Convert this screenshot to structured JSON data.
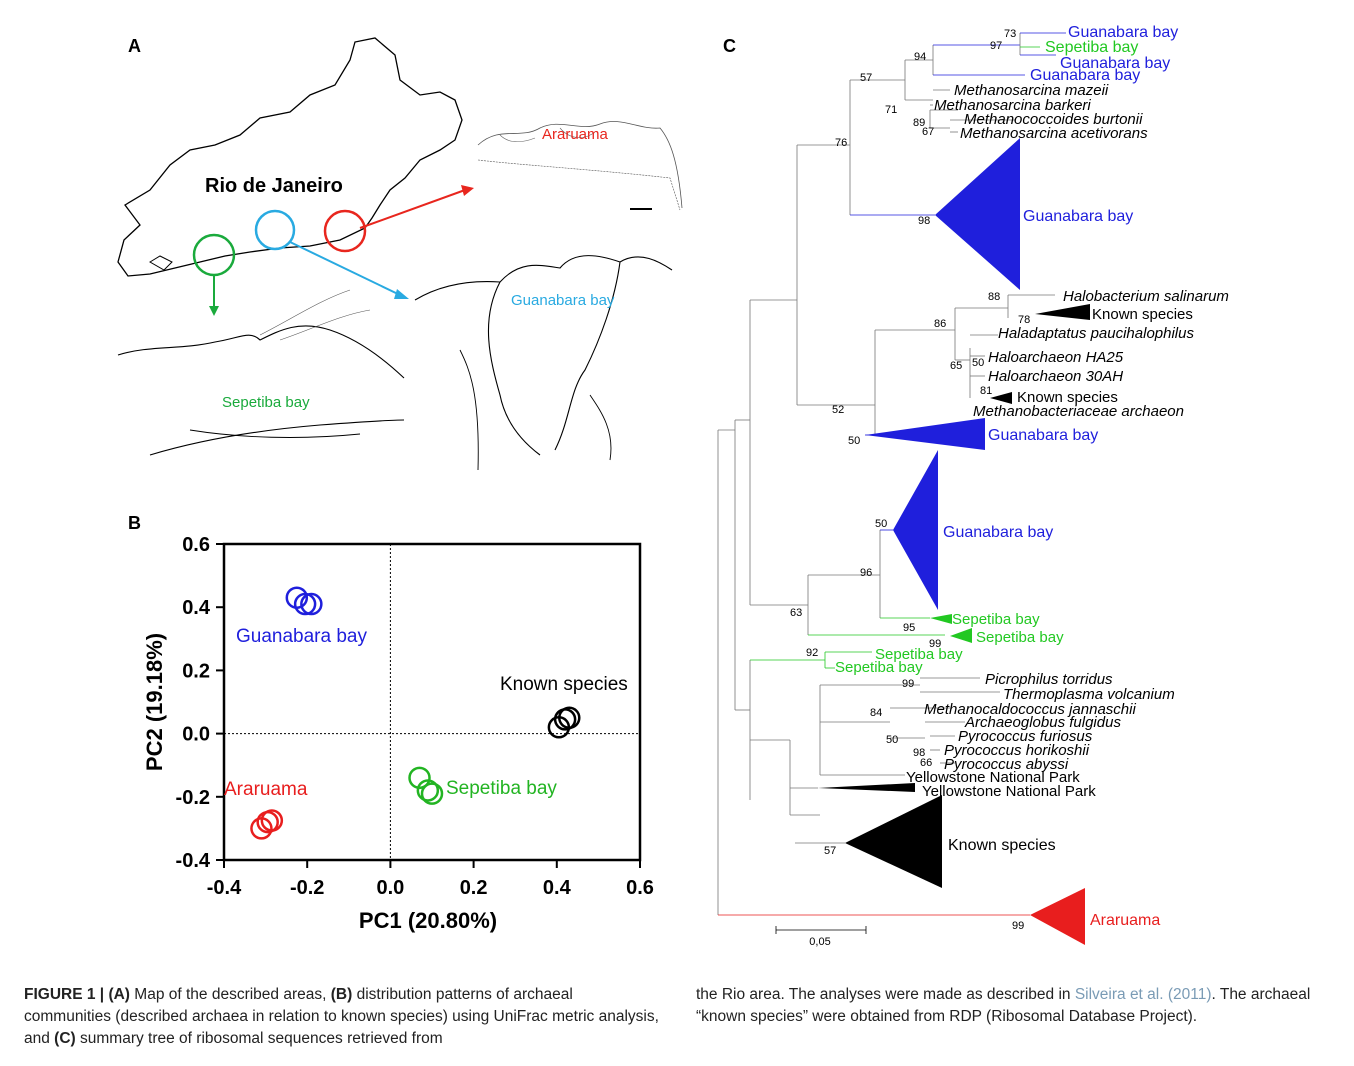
{
  "panels": {
    "a": "A",
    "b": "B",
    "c": "C"
  },
  "map": {
    "region_label": "Rio de Janeiro",
    "inset_araruama": "Araruama",
    "inset_guanabara": "Guanabara bay",
    "inset_sepetiba": "Sepetiba bay",
    "colors": {
      "araruama": "#e8261e",
      "guanabara": "#29aae1",
      "sepetiba": "#1aaa3c"
    }
  },
  "chart_data": {
    "type": "scatter",
    "xlabel": "PC1 (20.80%)",
    "ylabel": "PC2 (19.18%)",
    "xlim": [
      -0.4,
      0.6
    ],
    "ylim": [
      -0.4,
      0.6
    ],
    "xticks": [
      "-0.4",
      "-0.2",
      "0.0",
      "0.2",
      "0.4",
      "0.6"
    ],
    "yticks": [
      "-0.4",
      "-0.2",
      "0.0",
      "0.2",
      "0.4",
      "0.6"
    ],
    "series": [
      {
        "name": "Guanabara bay",
        "color": "#1f1fdc",
        "points": [
          [
            -0.225,
            0.43
          ],
          [
            -0.205,
            0.41
          ],
          [
            -0.19,
            0.41
          ]
        ]
      },
      {
        "name": "Known species",
        "color": "#000000",
        "points": [
          [
            0.405,
            0.02
          ],
          [
            0.42,
            0.045
          ],
          [
            0.43,
            0.05
          ]
        ]
      },
      {
        "name": "Araruama",
        "color": "#e81e1e",
        "points": [
          [
            -0.31,
            -0.3
          ],
          [
            -0.295,
            -0.28
          ],
          [
            -0.285,
            -0.275
          ]
        ]
      },
      {
        "name": "Sepetiba bay",
        "color": "#22b422",
        "points": [
          [
            0.07,
            -0.14
          ],
          [
            0.09,
            -0.18
          ],
          [
            0.1,
            -0.19
          ]
        ]
      }
    ]
  },
  "tree": {
    "scale_label": "0,05",
    "leaves": [
      {
        "text": "Guanabara bay",
        "color": "#1f1fdc",
        "italic": false
      },
      {
        "text": "Sepetiba bay",
        "color": "#22c822",
        "italic": false
      },
      {
        "text": "Guanabara bay",
        "color": "#1f1fdc",
        "italic": false
      },
      {
        "text": "Guanabara bay",
        "color": "#1f1fdc",
        "italic": false
      },
      {
        "text": "Methanosarcina mazeii",
        "color": "#000",
        "italic": true
      },
      {
        "text": "Methanosarcina barkeri",
        "color": "#000",
        "italic": true
      },
      {
        "text": "Methanococcoides burtonii",
        "color": "#000",
        "italic": true
      },
      {
        "text": "Methanosarcina acetivorans",
        "color": "#000",
        "italic": true
      },
      {
        "text": "Guanabara bay",
        "color": "#1f1fdc",
        "italic": false
      },
      {
        "text": "Halobacterium salinarum",
        "color": "#000",
        "italic": true
      },
      {
        "text": "Known species",
        "color": "#000",
        "italic": false
      },
      {
        "text": "Haladaptatus paucihalophilus",
        "color": "#000",
        "italic": true
      },
      {
        "text": "Haloarchaeon HA25",
        "color": "#000",
        "italic": true
      },
      {
        "text": "Haloarchaeon 30AH",
        "color": "#000",
        "italic": true
      },
      {
        "text": "Known species",
        "color": "#000",
        "italic": false
      },
      {
        "text": "Methanobacteriaceae archaeon",
        "color": "#000",
        "italic": true
      },
      {
        "text": "Guanabara bay",
        "color": "#1f1fdc",
        "italic": false
      },
      {
        "text": "Guanabara bay",
        "color": "#1f1fdc",
        "italic": false
      },
      {
        "text": "Sepetiba bay",
        "color": "#22c822",
        "italic": false
      },
      {
        "text": "Sepetiba bay",
        "color": "#22c822",
        "italic": false
      },
      {
        "text": "Sepetiba bay",
        "color": "#22c822",
        "italic": false
      },
      {
        "text": "Sepetiba bay",
        "color": "#22c822",
        "italic": false
      },
      {
        "text": "Picrophilus torridus",
        "color": "#000",
        "italic": true
      },
      {
        "text": "Thermoplasma volcanium",
        "color": "#000",
        "italic": true
      },
      {
        "text": "Methanocaldococcus jannaschii",
        "color": "#000",
        "italic": true
      },
      {
        "text": "Archaeoglobus fulgidus",
        "color": "#000",
        "italic": true
      },
      {
        "text": "Pyrococcus furiosus",
        "color": "#000",
        "italic": true
      },
      {
        "text": "Pyrococcus horikoshii",
        "color": "#000",
        "italic": true
      },
      {
        "text": "Pyrococcus abyssi",
        "color": "#000",
        "italic": true
      },
      {
        "text": "Yellowstone National Park",
        "color": "#000",
        "italic": false
      },
      {
        "text": "Yellowstone National Park",
        "color": "#000",
        "italic": false
      },
      {
        "text": "Known species",
        "color": "#000",
        "italic": false
      },
      {
        "text": "Araruama",
        "color": "#e81e1e",
        "italic": false
      }
    ],
    "bootstrap": [
      "73",
      "97",
      "94",
      "57",
      "71",
      "89",
      "67",
      "76",
      "98",
      "88",
      "78",
      "86",
      "65",
      "50",
      "81",
      "52",
      "50",
      "50",
      "96",
      "63",
      "95",
      "99",
      "92",
      "99",
      "84",
      "50",
      "98",
      "66",
      "57",
      "99"
    ]
  },
  "caption": {
    "fig": "FIGURE 1 |",
    "a": "(A)",
    "t1": " Map of the described areas, ",
    "b": "(B)",
    "t2": " distribution patterns of archaeal communities (described archaea in relation to known species) using UniFrac metric analysis, and ",
    "c": "(C)",
    "t3": " summary tree of ribosomal sequences retrieved from",
    "t4": "the Rio area. The analyses were made as described in ",
    "ref": "Silveira et al. (2011)",
    "t5": ". The archaeal “known species” were obtained from RDP (Ribosomal Database Project)."
  }
}
